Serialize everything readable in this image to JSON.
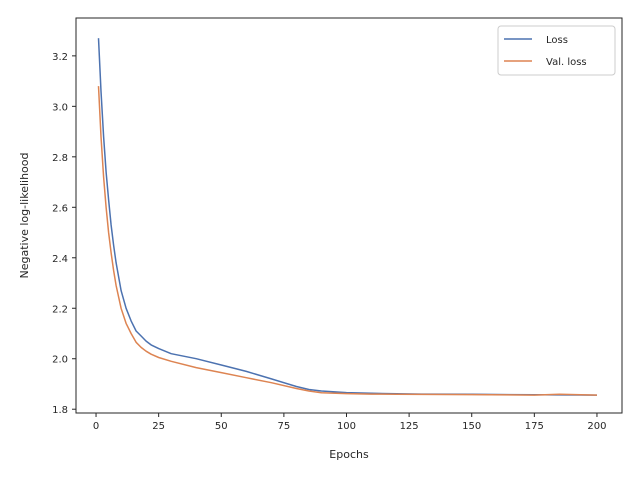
{
  "chart_data": {
    "type": "line",
    "xlabel": "Epochs",
    "ylabel": "Negative log-likelihood",
    "xlim": [
      -8,
      210
    ],
    "ylim": [
      1.785,
      3.35
    ],
    "xticks": [
      0,
      25,
      50,
      75,
      100,
      125,
      150,
      175,
      200
    ],
    "yticks": [
      1.8,
      2.0,
      2.2,
      2.4,
      2.6,
      2.8,
      3.0,
      3.2
    ],
    "grid": false,
    "legend": "top-right",
    "series": [
      {
        "name": "Loss",
        "color": "#4c72b0",
        "x": [
          1,
          2,
          3,
          4,
          5,
          6,
          7,
          8,
          10,
          12,
          14,
          16,
          18,
          20,
          22,
          25,
          30,
          40,
          50,
          60,
          70,
          80,
          85,
          90,
          100,
          110,
          120,
          130,
          150,
          175,
          200
        ],
        "y": [
          3.27,
          3.06,
          2.88,
          2.74,
          2.63,
          2.53,
          2.45,
          2.38,
          2.27,
          2.2,
          2.15,
          2.11,
          2.09,
          2.07,
          2.055,
          2.04,
          2.02,
          2.0,
          1.975,
          1.95,
          1.92,
          1.89,
          1.878,
          1.872,
          1.866,
          1.863,
          1.861,
          1.86,
          1.859,
          1.857,
          1.856
        ]
      },
      {
        "name": "Val. loss",
        "color": "#dd8452",
        "x": [
          1,
          2,
          3,
          4,
          5,
          6,
          7,
          8,
          10,
          12,
          14,
          16,
          18,
          20,
          22,
          25,
          30,
          40,
          50,
          60,
          70,
          80,
          85,
          90,
          100,
          110,
          120,
          150,
          175,
          185,
          200
        ],
        "y": [
          3.08,
          2.88,
          2.72,
          2.6,
          2.5,
          2.42,
          2.35,
          2.29,
          2.2,
          2.14,
          2.1,
          2.065,
          2.045,
          2.03,
          2.018,
          2.005,
          1.99,
          1.965,
          1.945,
          1.925,
          1.905,
          1.882,
          1.872,
          1.865,
          1.862,
          1.86,
          1.859,
          1.858,
          1.856,
          1.859,
          1.856
        ]
      }
    ]
  }
}
